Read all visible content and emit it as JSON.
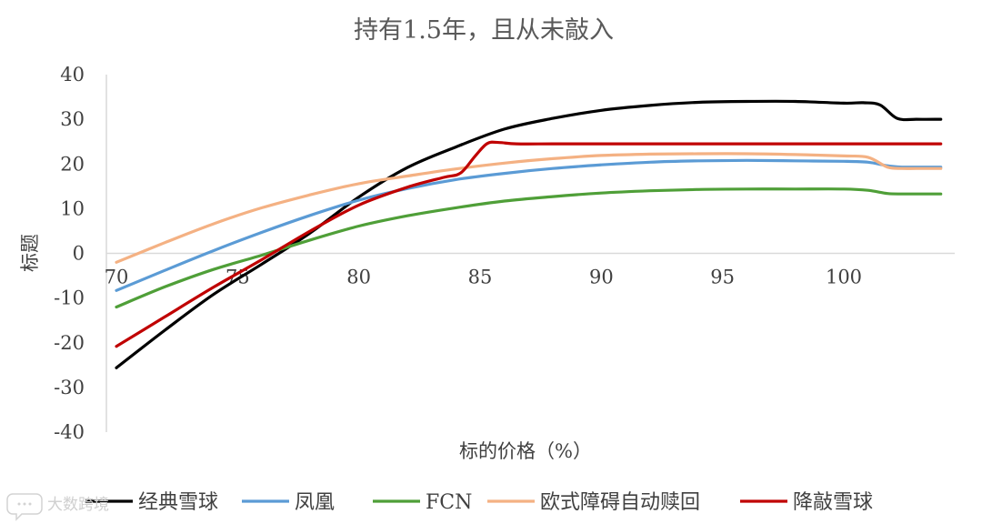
{
  "chart_data": {
    "type": "line",
    "title": "持有1.5年，且从未敲入",
    "xlabel": "标的价格（%）",
    "ylabel": "标题",
    "xlim": [
      70,
      104
    ],
    "ylim": [
      -40,
      40
    ],
    "xticks": [
      70,
      75,
      80,
      85,
      90,
      95,
      100
    ],
    "yticks": [
      40,
      30,
      20,
      10,
      0,
      -10,
      -20,
      -30,
      -40
    ],
    "grid": false,
    "legend_position": "bottom",
    "series": [
      {
        "name": "经典雪球",
        "color": "#000000",
        "x": [
          70,
          72,
          74,
          76,
          78,
          80,
          82,
          84,
          86,
          88,
          90,
          92,
          94,
          96,
          98,
          100,
          100.8,
          101.5,
          102.2,
          103,
          104
        ],
        "y": [
          -25.6,
          -17.2,
          -9.2,
          -2.4,
          4.6,
          12.6,
          19.2,
          23.8,
          27.8,
          30.2,
          32,
          33.1,
          33.8,
          34,
          34,
          33.6,
          33.7,
          33.2,
          30.2,
          30,
          30
        ]
      },
      {
        "name": "凤凰",
        "color": "#5b9bd5",
        "x": [
          70,
          72,
          74,
          76,
          78,
          80,
          82,
          84,
          86,
          88,
          90,
          92,
          94,
          96,
          98,
          100,
          101,
          101.8,
          102.4,
          103,
          104
        ],
        "y": [
          -8.3,
          -3.8,
          0.6,
          4.7,
          8.5,
          11.9,
          14.5,
          16.5,
          17.9,
          19,
          19.8,
          20.4,
          20.7,
          20.8,
          20.7,
          20.6,
          20.4,
          19.6,
          19.3,
          19.3,
          19.3
        ]
      },
      {
        "name": "FCN",
        "color": "#4f9f38",
        "x": [
          70,
          72,
          74,
          76,
          78,
          80,
          82,
          84,
          86,
          88,
          90,
          92,
          94,
          96,
          98,
          100,
          101,
          101.8,
          102.4,
          103,
          104
        ],
        "y": [
          -12,
          -7.5,
          -3.6,
          -0.4,
          3,
          6.1,
          8.4,
          10.2,
          11.7,
          12.7,
          13.5,
          14,
          14.3,
          14.4,
          14.4,
          14.4,
          14.1,
          13.4,
          13.3,
          13.3,
          13.3
        ]
      },
      {
        "name": "欧式障碍自动赎回",
        "color": "#f4b183",
        "x": [
          70,
          72,
          74,
          76,
          78,
          80,
          82,
          84,
          86,
          88,
          90,
          92,
          94,
          96,
          98,
          100,
          101,
          101.8,
          102.4,
          103,
          104
        ],
        "y": [
          -2,
          2.4,
          6.6,
          10.2,
          13.1,
          15.6,
          17.3,
          18.9,
          20.2,
          21.2,
          21.9,
          22.2,
          22.3,
          22.3,
          22.1,
          21.8,
          21.5,
          19.3,
          19,
          19,
          19
        ]
      },
      {
        "name": "降敲雪球",
        "color": "#c00000",
        "x": [
          70,
          72,
          74,
          76,
          78,
          80,
          82,
          83.5,
          84.2,
          84.8,
          85.3,
          85.8,
          86.5,
          88,
          90,
          92,
          94,
          96,
          98,
          100,
          102,
          104
        ],
        "y": [
          -20.8,
          -14.2,
          -7.6,
          -1.4,
          5,
          10.8,
          14.8,
          17,
          18,
          21.8,
          24.6,
          24.8,
          24.5,
          24.5,
          24.5,
          24.5,
          24.5,
          24.5,
          24.5,
          24.5,
          24.5,
          24.5
        ]
      }
    ]
  },
  "watermark": {
    "icon": "speech-bubble-icon",
    "text": "大数跨境"
  }
}
